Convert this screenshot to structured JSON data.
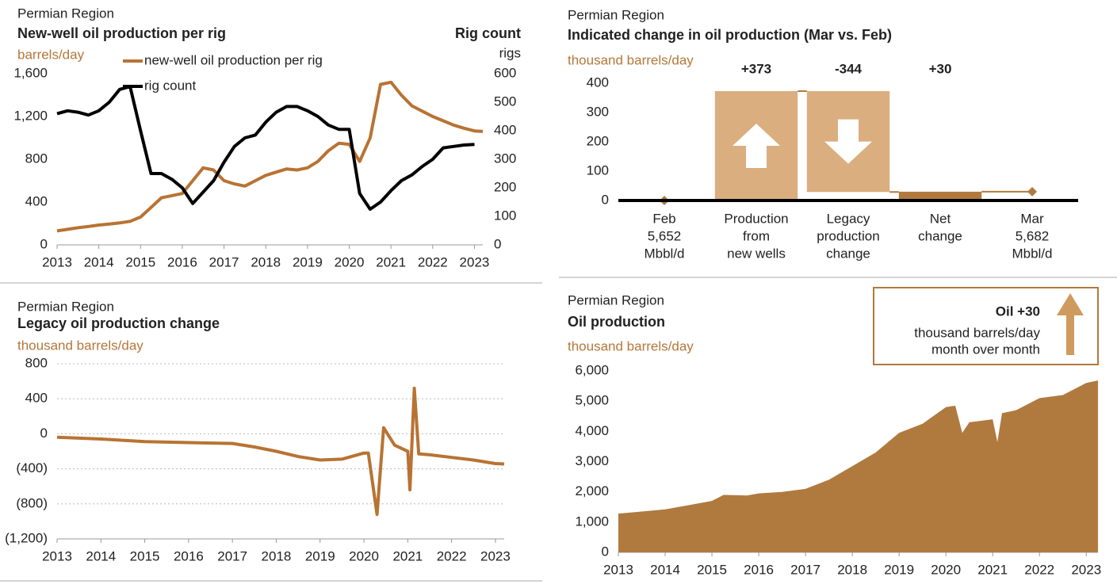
{
  "chart_data": [
    {
      "type": "line",
      "supertitle": "Permian Region",
      "title": "New-well oil production per rig",
      "ylabel": "barrels/day",
      "y2title": "Rig count",
      "y2label": "rigs",
      "legend": "top left",
      "x": [
        2013,
        2013.25,
        2013.5,
        2013.75,
        2014,
        2014.25,
        2014.5,
        2014.75,
        2015,
        2015.25,
        2015.5,
        2015.75,
        2016,
        2016.25,
        2016.5,
        2016.75,
        2017,
        2017.25,
        2017.5,
        2017.75,
        2018,
        2018.25,
        2018.5,
        2018.75,
        2019,
        2019.25,
        2019.5,
        2019.75,
        2020,
        2020.25,
        2020.5,
        2020.75,
        2021,
        2021.25,
        2021.5,
        2021.75,
        2022,
        2022.25,
        2022.5,
        2022.75,
        2023,
        2023.2
      ],
      "series": [
        {
          "name": "new-well oil production per rig",
          "color": "#b87333",
          "values": [
            130,
            145,
            160,
            172,
            185,
            195,
            205,
            220,
            260,
            350,
            440,
            460,
            480,
            600,
            720,
            700,
            600,
            570,
            550,
            600,
            650,
            680,
            710,
            700,
            720,
            780,
            880,
            950,
            940,
            780,
            1000,
            1500,
            1520,
            1400,
            1300,
            1250,
            1200,
            1160,
            1120,
            1090,
            1065,
            1060
          ]
        },
        {
          "name": "rig count",
          "color": "#000000",
          "axis": "y2",
          "values": [
            460,
            470,
            465,
            455,
            470,
            500,
            545,
            555,
            400,
            250,
            250,
            230,
            200,
            145,
            185,
            225,
            290,
            345,
            375,
            385,
            430,
            465,
            485,
            485,
            470,
            450,
            420,
            405,
            405,
            180,
            125,
            150,
            190,
            225,
            245,
            275,
            300,
            340,
            345,
            350,
            352,
            null
          ]
        }
      ],
      "xlim": [
        2013,
        2023.2
      ],
      "xticks": [
        2013,
        2014,
        2015,
        2016,
        2017,
        2018,
        2019,
        2020,
        2021,
        2022,
        2023
      ],
      "ylim": [
        0,
        1600
      ],
      "yticks": [
        0,
        400,
        800,
        {
          "value": 1200,
          "label": "1,200"
        },
        {
          "value": 1600,
          "label": "1,600"
        }
      ],
      "y2lim": [
        0,
        600
      ],
      "y2ticks": [
        0,
        100,
        200,
        300,
        400,
        500,
        600
      ]
    },
    {
      "type": "waterfall",
      "supertitle": "Permian Region",
      "title": "Indicated change in oil production (Mar vs. Feb)",
      "ylabel": "thousand barrels/day",
      "categories": [
        [
          "Feb",
          "5,652",
          "Mbbl/d"
        ],
        [
          "Production",
          "from",
          "new wells"
        ],
        [
          "Legacy",
          "production",
          "change"
        ],
        [
          "Net",
          "change"
        ],
        [
          "Mar",
          "5,682",
          "Mbbl/d"
        ]
      ],
      "measure": [
        "absolute",
        "relative",
        "relative",
        "total",
        "absolute"
      ],
      "values": [
        0,
        373,
        -344,
        30,
        30
      ],
      "value_labels": [
        null,
        "+373",
        "-344",
        "+30",
        null
      ],
      "colors": [
        "#b07a3f",
        "#dbae7f",
        "#dbae7f",
        "#b07a3f",
        "#b07a3f"
      ],
      "ylim": [
        0,
        400
      ],
      "yticks": [
        0,
        100,
        200,
        300,
        400
      ]
    },
    {
      "type": "line",
      "supertitle": "Permian Region",
      "title": "Legacy oil production change",
      "ylabel": "thousand barrels/day",
      "grid": true,
      "x": [
        2013,
        2014,
        2015,
        2016,
        2017,
        2017.5,
        2018,
        2018.5,
        2019,
        2019.5,
        2020,
        2020.1,
        2020.3,
        2020.45,
        2020.7,
        2021,
        2021.05,
        2021.15,
        2021.25,
        2021.5,
        2022,
        2022.5,
        2023,
        2023.2
      ],
      "series": [
        {
          "name": "legacy oil production change",
          "color": "#b87333",
          "values": [
            -40,
            -60,
            -90,
            -100,
            -110,
            -150,
            -200,
            -260,
            -300,
            -290,
            -220,
            -220,
            -920,
            70,
            -130,
            -200,
            -640,
            520,
            -230,
            -240,
            -270,
            -300,
            -340,
            -345
          ]
        }
      ],
      "xlim": [
        2013,
        2023.2
      ],
      "xticks": [
        2013,
        2014,
        2015,
        2016,
        2017,
        2018,
        2019,
        2020,
        2021,
        2022,
        2023
      ],
      "ylim": [
        -1200,
        800
      ],
      "yticks": [
        {
          "value": -1200,
          "label": "(1,200)"
        },
        {
          "value": -800,
          "label": "(800)"
        },
        {
          "value": -400,
          "label": "(400)"
        },
        0,
        400,
        800
      ]
    },
    {
      "type": "area",
      "supertitle": "Permian Region",
      "title": "Oil production",
      "ylabel": "thousand barrels/day",
      "annotation": {
        "headline": "Oil +30",
        "lines": [
          "thousand barrels/day",
          "month over month"
        ]
      },
      "x": [
        2013,
        2013.5,
        2014,
        2014.5,
        2015,
        2015.25,
        2015.75,
        2016,
        2016.5,
        2017,
        2017.5,
        2018,
        2018.5,
        2019,
        2019.5,
        2020,
        2020.2,
        2020.35,
        2020.5,
        2021,
        2021.1,
        2021.2,
        2021.5,
        2022,
        2022.5,
        2023,
        2023.25
      ],
      "series": [
        {
          "name": "oil production",
          "color": "#b07a3f",
          "values": [
            1280,
            1350,
            1420,
            1560,
            1700,
            1900,
            1880,
            1950,
            2000,
            2100,
            2400,
            2850,
            3300,
            3950,
            4250,
            4800,
            4850,
            3950,
            4300,
            4400,
            3650,
            4600,
            4700,
            5100,
            5200,
            5600,
            5682
          ]
        }
      ],
      "xlim": [
        2013,
        2023.25
      ],
      "xticks": [
        2013,
        2014,
        2015,
        2016,
        2017,
        2018,
        2019,
        2020,
        2021,
        2022,
        2023
      ],
      "ylim": [
        0,
        6000
      ],
      "yticks": [
        0,
        {
          "value": 1000,
          "label": "1,000"
        },
        {
          "value": 2000,
          "label": "2,000"
        },
        {
          "value": 3000,
          "label": "3,000"
        },
        {
          "value": 4000,
          "label": "4,000"
        },
        {
          "value": 5000,
          "label": "5,000"
        },
        {
          "value": 6000,
          "label": "6,000"
        }
      ]
    }
  ]
}
